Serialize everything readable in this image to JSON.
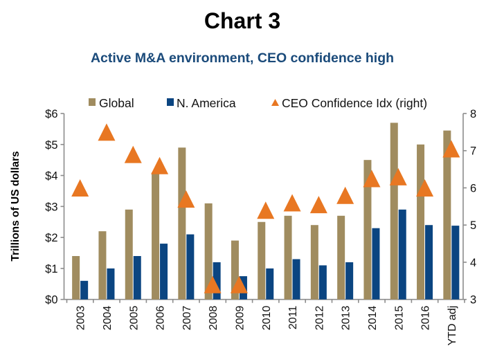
{
  "title": "Chart 3",
  "subtitle": "Active M&A environment, CEO confidence high",
  "colors": {
    "global": "#a08c5f",
    "north_america": "#0b4581",
    "ceo": "#e87722",
    "axis": "#8c8c8c",
    "subtitle": "#1a4a7a"
  },
  "chart_data": {
    "type": "bar",
    "title": "Chart 3",
    "subtitle": "Active M&A environment, CEO confidence high",
    "xlabel": "",
    "ylabel": "Trillions of US dollars",
    "ylabel_right": "",
    "categories": [
      "2003",
      "2004",
      "2005",
      "2006",
      "2007",
      "2008",
      "2009",
      "2010",
      "2011",
      "2012",
      "2013",
      "2014",
      "2015",
      "2016",
      "YTD adj"
    ],
    "series": [
      {
        "name": "Global",
        "type": "bar",
        "axis": "left",
        "values": [
          1.4,
          2.2,
          2.9,
          4.1,
          4.9,
          3.1,
          1.9,
          2.5,
          2.7,
          2.4,
          2.7,
          4.5,
          5.7,
          5.0,
          5.45
        ]
      },
      {
        "name": "N. America",
        "type": "bar",
        "axis": "left",
        "values": [
          0.6,
          1.0,
          1.4,
          1.8,
          2.1,
          1.2,
          0.75,
          1.0,
          1.3,
          1.1,
          1.2,
          2.3,
          2.9,
          2.4,
          2.38
        ]
      },
      {
        "name": "CEO Confidence Idx (right)",
        "type": "scatter",
        "marker": "triangle",
        "axis": "right",
        "values": [
          6.0,
          7.5,
          6.9,
          6.6,
          5.7,
          3.4,
          3.4,
          5.4,
          5.6,
          5.55,
          5.8,
          6.25,
          6.3,
          6.0,
          7.05
        ]
      }
    ],
    "ylim": [
      0,
      6
    ],
    "yticks": [
      "$0",
      "$1",
      "$2",
      "$3",
      "$4",
      "$5",
      "$6"
    ],
    "ylim_right": [
      3,
      8
    ],
    "yticks_right": [
      "3",
      "4",
      "5",
      "6",
      "7",
      "8"
    ],
    "legend": {
      "placement": "top",
      "entries": [
        "Global",
        "N. America",
        "CEO Confidence Idx (right)"
      ]
    },
    "grid": false
  }
}
